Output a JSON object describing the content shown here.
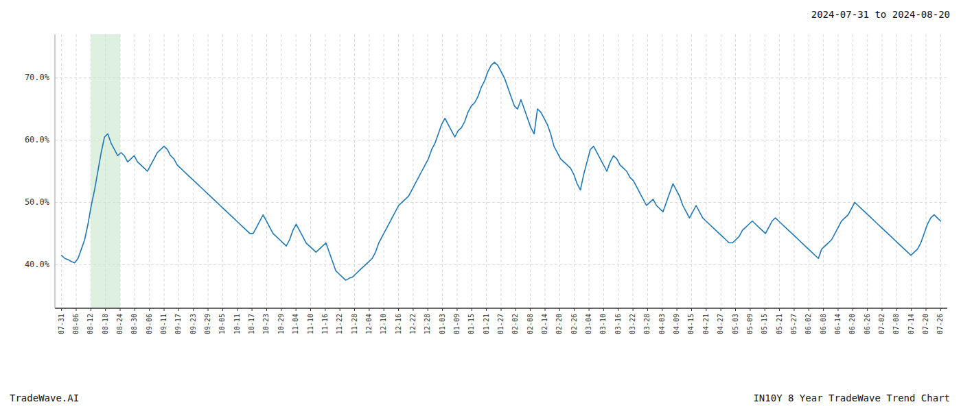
{
  "chart_data": {
    "type": "line",
    "title": "2024-07-31 to 2024-08-20",
    "annotations": [
      "TradeWave.AI",
      "IN10Y 8 Year TradeWave Trend Chart"
    ],
    "color": "#1f77b4",
    "highlight": {
      "start": "08-12",
      "end": "08-24",
      "color": "#c8e6c9"
    },
    "grid": true,
    "xlim": [
      -2,
      268
    ],
    "xticks": [
      {
        "value": 0,
        "label": "07-31"
      },
      {
        "value": 4.433333333333334,
        "label": "08-06"
      },
      {
        "value": 8.866666666666667,
        "label": "08-12"
      },
      {
        "value": 13.3,
        "label": "08-18"
      },
      {
        "value": 17.733333333333334,
        "label": "08-24"
      },
      {
        "value": 22.166666666666668,
        "label": "08-30"
      },
      {
        "value": 26.6,
        "label": "09-06"
      },
      {
        "value": 31.033333333333335,
        "label": "09-11"
      },
      {
        "value": 35.46666666666667,
        "label": "09-17"
      },
      {
        "value": 39.9,
        "label": "09-23"
      },
      {
        "value": 44.333333333333336,
        "label": "09-29"
      },
      {
        "value": 48.766666666666666,
        "label": "10-05"
      },
      {
        "value": 53.2,
        "label": "10-11"
      },
      {
        "value": 57.63333333333333,
        "label": "10-17"
      },
      {
        "value": 62.06666666666667,
        "label": "10-23"
      },
      {
        "value": 66.5,
        "label": "10-29"
      },
      {
        "value": 70.93333333333334,
        "label": "11-04"
      },
      {
        "value": 75.36666666666667,
        "label": "11-10"
      },
      {
        "value": 79.8,
        "label": "11-16"
      },
      {
        "value": 84.23333333333333,
        "label": "11-22"
      },
      {
        "value": 88.66666666666667,
        "label": "11-28"
      },
      {
        "value": 93.1,
        "label": "12-04"
      },
      {
        "value": 97.53333333333333,
        "label": "12-10"
      },
      {
        "value": 101.96666666666667,
        "label": "12-16"
      },
      {
        "value": 106.4,
        "label": "12-22"
      },
      {
        "value": 110.83333333333333,
        "label": "12-28"
      },
      {
        "value": 115.26666666666667,
        "label": "01-03"
      },
      {
        "value": 119.7,
        "label": "01-09"
      },
      {
        "value": 124.13333333333334,
        "label": "01-15"
      },
      {
        "value": 128.56666666666666,
        "label": "01-21"
      },
      {
        "value": 133,
        "label": "01-27"
      },
      {
        "value": 137.43333333333334,
        "label": "02-02"
      },
      {
        "value": 141.86666666666667,
        "label": "02-08"
      },
      {
        "value": 146.3,
        "label": "02-14"
      },
      {
        "value": 150.73333333333332,
        "label": "02-20"
      },
      {
        "value": 155.16666666666666,
        "label": "02-26"
      },
      {
        "value": 159.6,
        "label": "03-04"
      },
      {
        "value": 164.03333333333333,
        "label": "03-10"
      },
      {
        "value": 168.46666666666667,
        "label": "03-16"
      },
      {
        "value": 172.9,
        "label": "03-22"
      },
      {
        "value": 177.33333333333334,
        "label": "03-28"
      },
      {
        "value": 181.76666666666668,
        "label": "04-03"
      },
      {
        "value": 186.2,
        "label": "04-09"
      },
      {
        "value": 190.63333333333333,
        "label": "04-15"
      },
      {
        "value": 195.06666666666666,
        "label": "04-21"
      },
      {
        "value": 199.5,
        "label": "04-27"
      },
      {
        "value": 203.93333333333334,
        "label": "05-03"
      },
      {
        "value": 208.36666666666667,
        "label": "05-09"
      },
      {
        "value": 212.8,
        "label": "05-15"
      },
      {
        "value": 217.23333333333332,
        "label": "05-21"
      },
      {
        "value": 221.66666666666666,
        "label": "05-27"
      },
      {
        "value": 226.1,
        "label": "06-02"
      },
      {
        "value": 230.53333333333333,
        "label": "06-08"
      },
      {
        "value": 234.96666666666667,
        "label": "06-14"
      },
      {
        "value": 239.4,
        "label": "06-20"
      },
      {
        "value": 243.83333333333334,
        "label": "06-26"
      },
      {
        "value": 248.26666666666668,
        "label": "07-02"
      },
      {
        "value": 252.7,
        "label": "07-08"
      },
      {
        "value": 257.1333333333333,
        "label": "07-14"
      },
      {
        "value": 261.56666666666666,
        "label": "07-20"
      },
      {
        "value": 266,
        "label": "07-26"
      }
    ],
    "ylim": [
      33,
      77
    ],
    "yticks": [
      {
        "value": 40.0,
        "label": "40.0%"
      },
      {
        "value": 50.0,
        "label": "50.0%"
      },
      {
        "value": 60.0,
        "label": "60.0%"
      },
      {
        "value": 70.0,
        "label": "70.0%"
      }
    ],
    "values": [
      41.5,
      41.0,
      40.8,
      40.5,
      40.3,
      41.0,
      42.5,
      44.0,
      46.5,
      49.5,
      52.0,
      55.0,
      58.0,
      60.5,
      61.0,
      59.5,
      58.5,
      57.5,
      58.0,
      57.5,
      56.5,
      57.0,
      57.5,
      56.5,
      56.0,
      55.5,
      55.0,
      56.0,
      57.0,
      58.0,
      58.5,
      59.0,
      58.5,
      57.5,
      57.0,
      56.0,
      55.5,
      55.0,
      54.5,
      54.0,
      53.5,
      53.0,
      52.5,
      52.0,
      51.5,
      51.0,
      50.5,
      50.0,
      49.5,
      49.0,
      48.5,
      48.0,
      47.5,
      47.0,
      46.5,
      46.0,
      45.5,
      45.0,
      45.0,
      46.0,
      47.0,
      48.0,
      47.0,
      46.0,
      45.0,
      44.5,
      44.0,
      43.5,
      43.0,
      44.0,
      45.5,
      46.5,
      45.5,
      44.5,
      43.5,
      43.0,
      42.5,
      42.0,
      42.5,
      43.0,
      43.5,
      42.0,
      40.5,
      39.0,
      38.5,
      38.0,
      37.5,
      37.8,
      38.0,
      38.5,
      39.0,
      39.5,
      40.0,
      40.5,
      41.0,
      42.0,
      43.5,
      44.5,
      45.5,
      46.5,
      47.5,
      48.5,
      49.5,
      50.0,
      50.5,
      51.0,
      52.0,
      53.0,
      54.0,
      55.0,
      56.0,
      57.0,
      58.5,
      59.5,
      61.0,
      62.5,
      63.5,
      62.5,
      61.5,
      60.5,
      61.5,
      62.0,
      63.0,
      64.5,
      65.5,
      66.0,
      67.0,
      68.5,
      69.5,
      71.0,
      72.0,
      72.5,
      72.0,
      71.0,
      70.0,
      68.5,
      67.0,
      65.5,
      65.0,
      66.5,
      65.0,
      63.5,
      62.0,
      61.0,
      65.0,
      64.5,
      63.5,
      62.5,
      61.0,
      59.0,
      58.0,
      57.0,
      56.5,
      56.0,
      55.5,
      54.5,
      53.0,
      52.0,
      54.5,
      56.5,
      58.5,
      59.0,
      58.0,
      57.0,
      56.0,
      55.0,
      56.5,
      57.5,
      57.0,
      56.0,
      55.5,
      55.0,
      54.0,
      53.5,
      52.5,
      51.5,
      50.5,
      49.5,
      50.0,
      50.5,
      49.5,
      49.0,
      48.5,
      50.0,
      51.5,
      53.0,
      52.0,
      51.0,
      49.5,
      48.5,
      47.5,
      48.5,
      49.5,
      48.5,
      47.5,
      47.0,
      46.5,
      46.0,
      45.5,
      45.0,
      44.5,
      44.0,
      43.5,
      43.5,
      44.0,
      44.5,
      45.5,
      46.0,
      46.5,
      47.0,
      46.5,
      46.0,
      45.5,
      45.0,
      46.0,
      47.0,
      47.5,
      47.0,
      46.5,
      46.0,
      45.5,
      45.0,
      44.5,
      44.0,
      43.5,
      43.0,
      42.5,
      42.0,
      41.5,
      41.0,
      42.5,
      43.0,
      43.5,
      44.0,
      45.0,
      46.0,
      47.0,
      47.5,
      48.0,
      49.0,
      50.0,
      49.5,
      49.0,
      48.5,
      48.0,
      47.5,
      47.0,
      46.5,
      46.0,
      45.5,
      45.0,
      44.5,
      44.0,
      43.5,
      43.0,
      42.5,
      42.0,
      41.5,
      42.0,
      42.5,
      43.5,
      45.0,
      46.5,
      47.5,
      48.0,
      47.5,
      47.0
    ]
  }
}
